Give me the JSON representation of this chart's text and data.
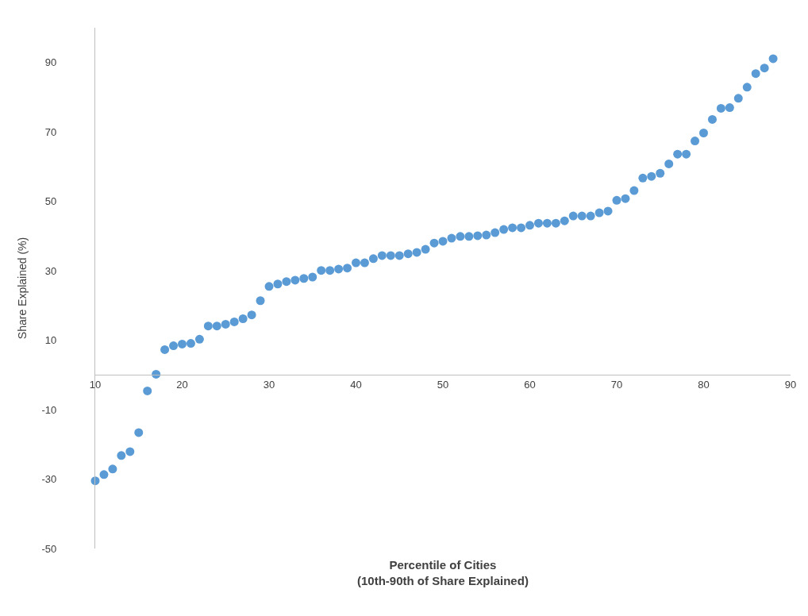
{
  "chart_data": {
    "type": "scatter",
    "xlabel": "Percentile of Cities\n(10th-90th of Share Explained)",
    "ylabel": "Share Explained (%)",
    "x": [
      10,
      11,
      12,
      13,
      14,
      15,
      16,
      17,
      18,
      19,
      20,
      21,
      22,
      23,
      24,
      25,
      26,
      27,
      28,
      29,
      30,
      31,
      32,
      33,
      34,
      35,
      36,
      37,
      38,
      39,
      40,
      41,
      42,
      43,
      44,
      45,
      46,
      47,
      48,
      49,
      50,
      51,
      52,
      53,
      54,
      55,
      56,
      57,
      58,
      59,
      60,
      61,
      62,
      63,
      64,
      65,
      66,
      67,
      68,
      69,
      70,
      71,
      72,
      73,
      74,
      75,
      76,
      77,
      78,
      79,
      80,
      81,
      82,
      83,
      84,
      85,
      86,
      87,
      88
    ],
    "series": [
      {
        "color": "#5b9bd5",
        "values": [
          -30.5,
          -28.7,
          -27.1,
          -23.2,
          -22.1,
          -16.6,
          -4.6,
          0.2,
          7.3,
          8.4,
          8.9,
          9.1,
          10.3,
          14.1,
          14.1,
          14.6,
          15.3,
          16.2,
          17.3,
          21.4,
          25.5,
          26.2,
          26.9,
          27.3,
          27.8,
          28.2,
          30.1,
          30.1,
          30.5,
          30.8,
          32.3,
          32.3,
          33.5,
          34.4,
          34.4,
          34.4,
          34.9,
          35.3,
          36.2,
          38.0,
          38.5,
          39.4,
          39.9,
          39.9,
          40.1,
          40.3,
          41.0,
          41.9,
          42.4,
          42.4,
          43.1,
          43.7,
          43.7,
          43.7,
          44.4,
          45.8,
          45.8,
          45.8,
          46.7,
          47.2,
          50.3,
          50.8,
          53.1,
          56.7,
          57.2,
          58.1,
          60.8,
          63.6,
          63.6,
          67.4,
          69.7,
          73.6,
          76.8,
          77.0,
          79.7,
          82.9,
          86.8,
          88.4,
          91.1
        ]
      }
    ],
    "xlim": [
      10,
      90
    ],
    "xticks": [
      10,
      20,
      30,
      40,
      50,
      60,
      70,
      80,
      90
    ],
    "ylim": [
      -50,
      100
    ],
    "yticks": [
      -50,
      -30,
      -10,
      10,
      30,
      50,
      70,
      90
    ],
    "marker": "circle"
  }
}
